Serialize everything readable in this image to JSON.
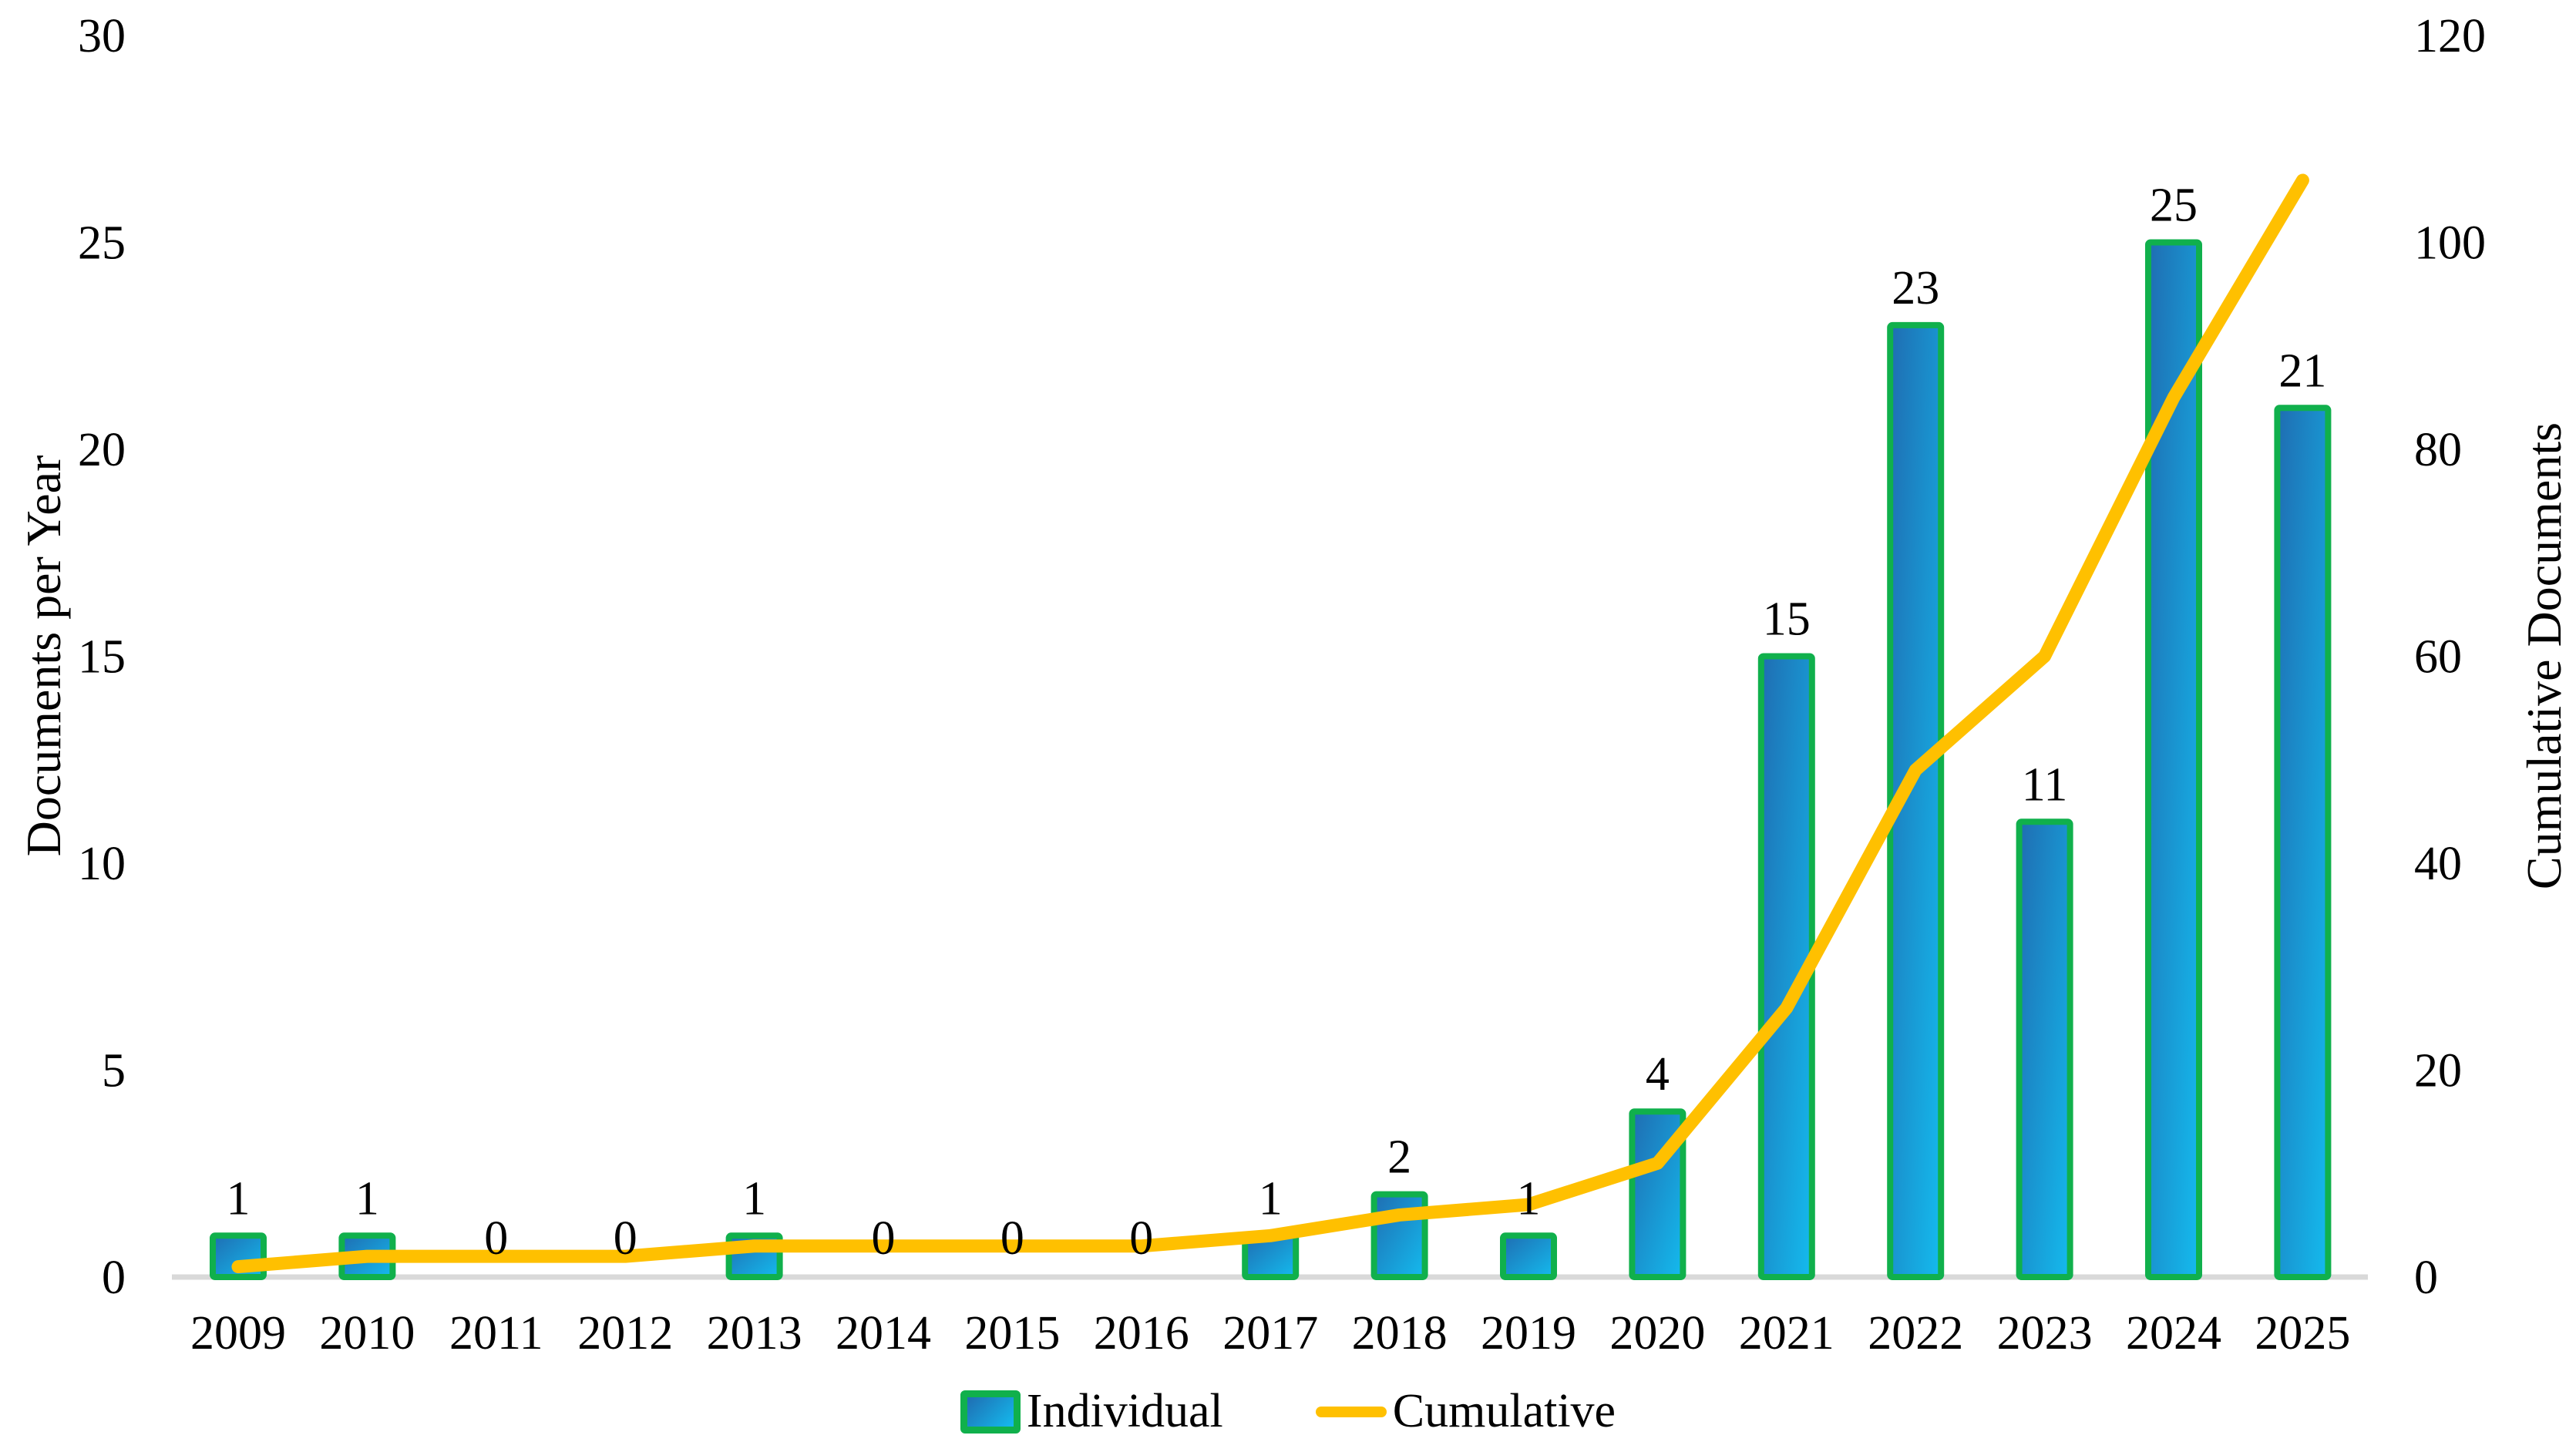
{
  "chart_data": {
    "type": "bar",
    "subtype": "combo-bar-line-dual-axis",
    "title": "",
    "categories": [
      "2009",
      "2010",
      "2011",
      "2012",
      "2013",
      "2014",
      "2015",
      "2016",
      "2017",
      "2018",
      "2019",
      "2020",
      "2021",
      "2022",
      "2023",
      "2024",
      "2025"
    ],
    "series": [
      {
        "name": "Individual",
        "type": "bar",
        "axis": "left",
        "values": [
          1,
          1,
          0,
          0,
          1,
          0,
          0,
          0,
          1,
          2,
          1,
          4,
          15,
          23,
          11,
          25,
          21
        ]
      },
      {
        "name": "Cumulative",
        "type": "line",
        "axis": "right",
        "values": [
          1,
          2,
          2,
          2,
          3,
          3,
          3,
          3,
          4,
          6,
          7,
          11,
          26,
          49,
          60,
          85,
          106
        ]
      }
    ],
    "data_labels_series": "Individual",
    "left_axis": {
      "label": "Documents per Year",
      "min": 0,
      "max": 30,
      "ticks": [
        0,
        5,
        10,
        15,
        20,
        25,
        30
      ]
    },
    "right_axis": {
      "label": "Cumulative Documents",
      "min": 0,
      "max": 120,
      "ticks": [
        0,
        20,
        40,
        60,
        80,
        100,
        120
      ]
    },
    "legend": {
      "position": "bottom",
      "entries": [
        "Individual",
        "Cumulative"
      ]
    },
    "grid": false,
    "colors": {
      "bar_fill_start": "#1F6DB2",
      "bar_fill_end": "#14BBEE",
      "bar_border": "#10B04C",
      "line": "#FFC000",
      "axis_line": "#D9D9D9",
      "text": "#000000",
      "background": "#FFFFFF"
    }
  }
}
